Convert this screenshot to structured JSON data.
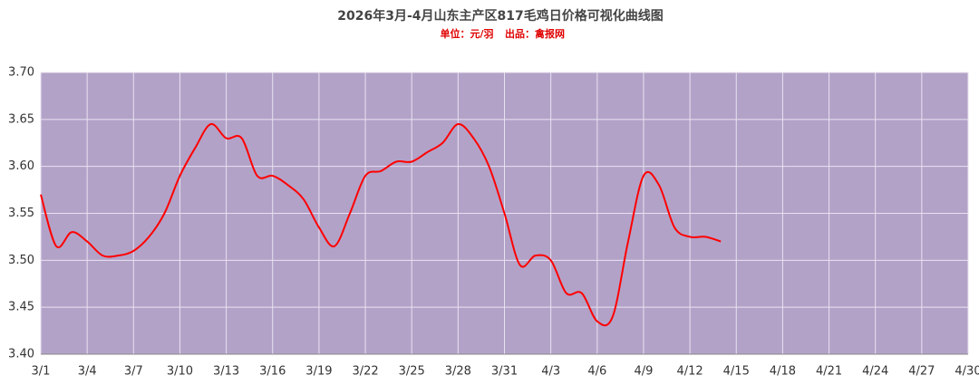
{
  "chart_data": {
    "type": "line",
    "title": "2026年3月-4月山东主产区817毛鸡日价格可视化曲线图",
    "subtitle": [
      "单位：元/羽",
      "出品：禽报网"
    ],
    "x": [
      "3/1",
      "3/2",
      "3/3",
      "3/4",
      "3/5",
      "3/6",
      "3/7",
      "3/8",
      "3/9",
      "3/10",
      "3/11",
      "3/12",
      "3/13",
      "3/14",
      "3/15",
      "3/16",
      "3/17",
      "3/18",
      "3/19",
      "3/20",
      "3/21",
      "3/22",
      "3/23",
      "3/24",
      "3/25",
      "3/26",
      "3/27",
      "3/28",
      "3/29",
      "3/30",
      "3/31",
      "4/1",
      "4/2",
      "4/3",
      "4/4",
      "4/5",
      "4/6",
      "4/7",
      "4/8",
      "4/9",
      "4/10",
      "4/11",
      "4/12",
      "4/13",
      "4/14"
    ],
    "series": [
      {
        "color": "#ff0000",
        "values": [
          3.57,
          3.515,
          3.53,
          3.52,
          3.505,
          3.505,
          3.51,
          3.525,
          3.55,
          3.59,
          3.62,
          3.645,
          3.63,
          3.63,
          3.59,
          3.59,
          3.58,
          3.565,
          3.535,
          3.515,
          3.55,
          3.59,
          3.595,
          3.605,
          3.605,
          3.615,
          3.625,
          3.645,
          3.63,
          3.6,
          3.55,
          3.495,
          3.505,
          3.5,
          3.465,
          3.465,
          3.435,
          3.44,
          3.52,
          3.59,
          3.58,
          3.535,
          3.525,
          3.525,
          3.52
        ]
      }
    ],
    "xlim": [
      "3/1",
      "4/30"
    ],
    "xticks": [
      "3/1",
      "3/4",
      "3/7",
      "3/10",
      "3/13",
      "3/16",
      "3/19",
      "3/22",
      "3/25",
      "3/28",
      "3/31",
      "4/3",
      "4/6",
      "4/9",
      "4/12",
      "4/15",
      "4/18",
      "4/21",
      "4/24",
      "4/27",
      "4/30"
    ],
    "ylim": [
      3.4,
      3.7
    ],
    "yticks": [
      {
        "value": 3.4,
        "label": "3.40"
      },
      {
        "value": 3.45,
        "label": "3.45"
      },
      {
        "value": 3.5,
        "label": "3.50"
      },
      {
        "value": 3.55,
        "label": "3.55"
      },
      {
        "value": 3.6,
        "label": "3.60"
      },
      {
        "value": 3.65,
        "label": "3.65"
      },
      {
        "value": 3.7,
        "label": "3.70"
      }
    ],
    "grid": true,
    "plot_background": "#b3a2c8"
  }
}
